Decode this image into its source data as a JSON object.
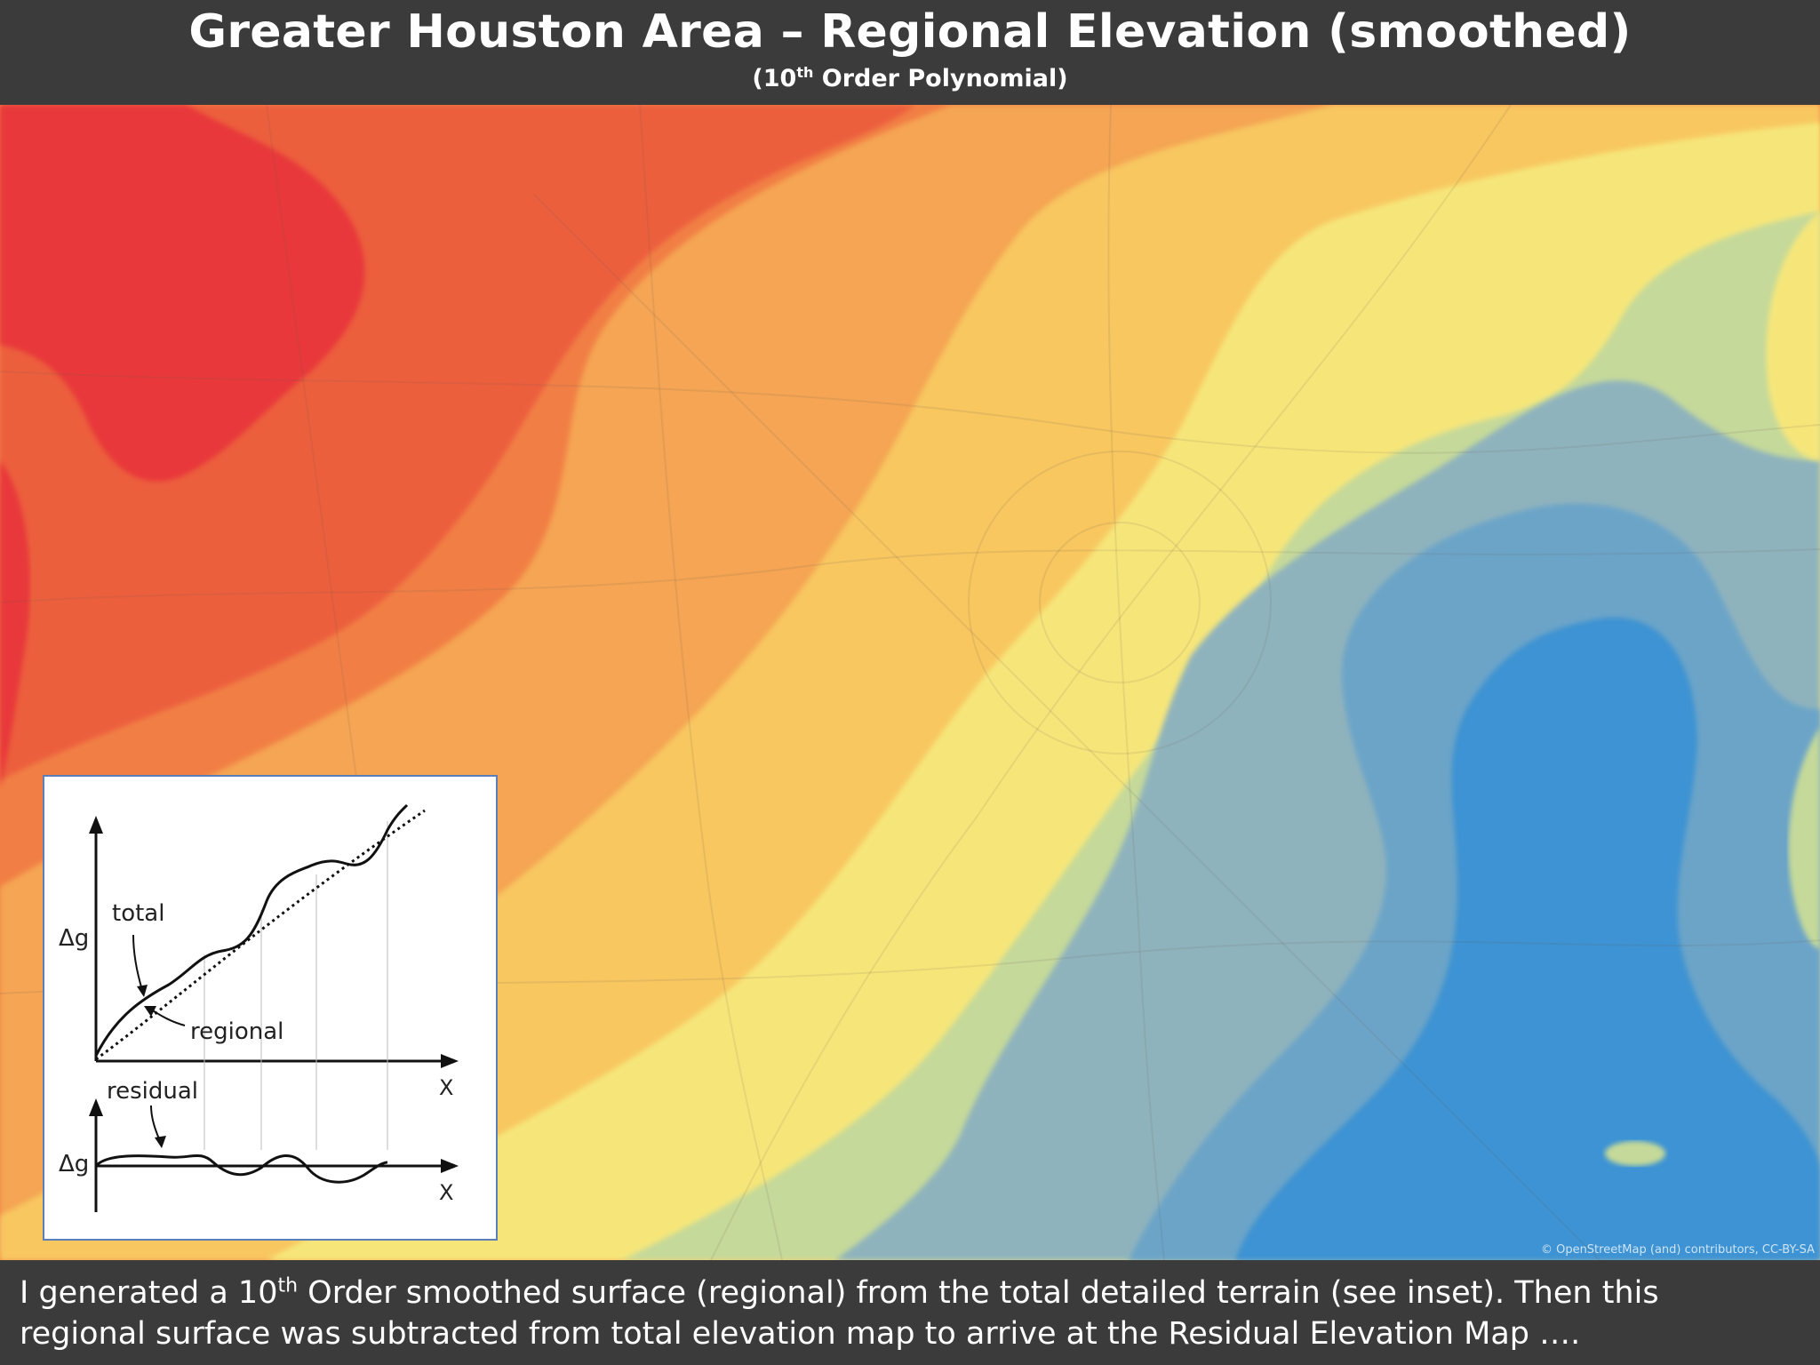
{
  "header": {
    "title": "Greater Houston Area – Regional Elevation (smoothed)",
    "subtitle_pre": "(10",
    "subtitle_sup": "th",
    "subtitle_post": " Order Polynomial)"
  },
  "map": {
    "attribution": "© OpenStreetMap (and) contributors, CC-BY-SA",
    "colors": {
      "red": "#e8383a",
      "red_orange": "#ec5e3e",
      "orange": "#f17f45",
      "light_orange": "#f5a552",
      "pale_orange": "#f8c760",
      "yellow": "#f6e67a",
      "pale_green": "#c5d99a",
      "grey_blue": "#8fb3bd",
      "steel_blue": "#6ca4c8",
      "blue": "#3c93d3"
    }
  },
  "inset": {
    "label_total": "total",
    "label_regional": "regional",
    "label_residual": "residual",
    "axis_y_top": "Δg",
    "axis_y_bottom": "Δg",
    "axis_x_top": "X",
    "axis_x_bottom": "X"
  },
  "caption": {
    "line1_pre": "I generated a 10",
    "line1_sup": "th",
    "line1_post": " Order smoothed surface (regional) from the total detailed terrain (see inset).  Then this",
    "line2": "regional surface was subtracted from total elevation map to arrive at the Residual Elevation Map …."
  }
}
